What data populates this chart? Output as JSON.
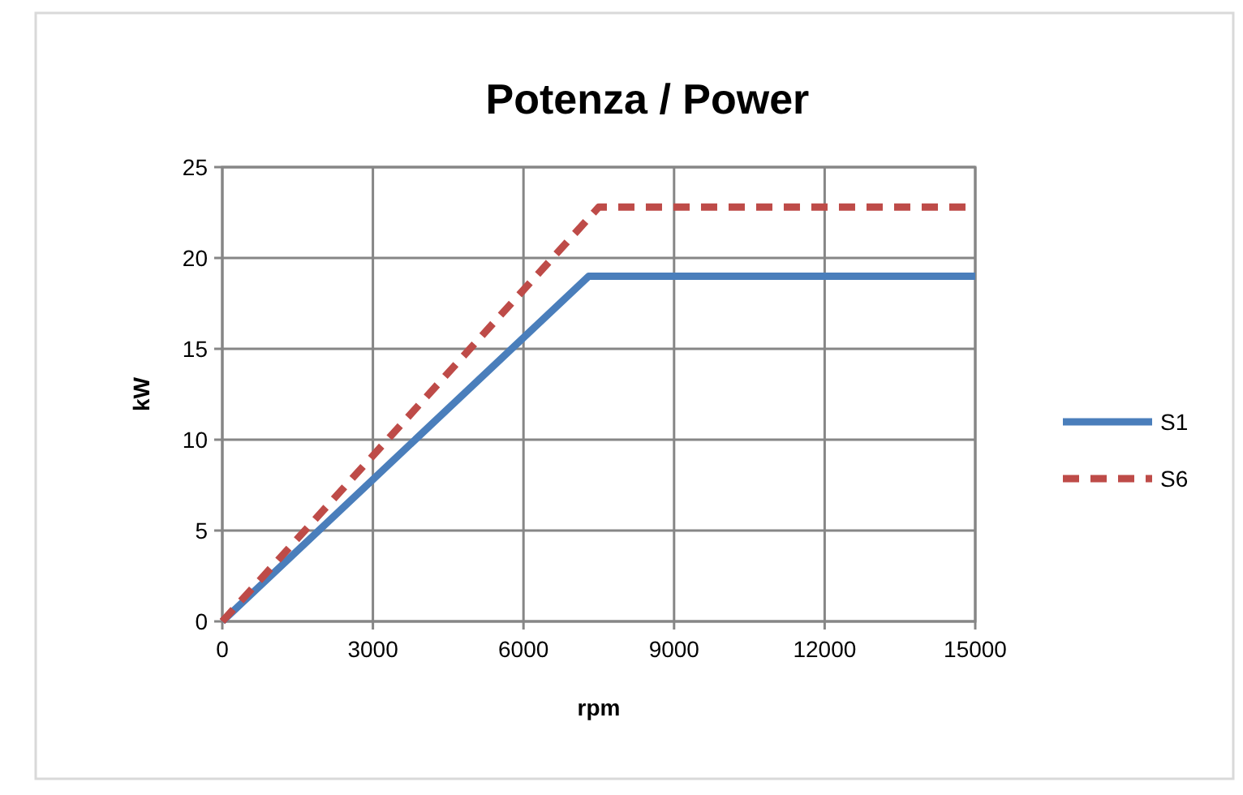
{
  "chart_data": {
    "type": "line",
    "title": "Potenza / Power",
    "xlabel": "rpm",
    "ylabel": "kW",
    "xlim": [
      0,
      15000
    ],
    "xticks": [
      0,
      3000,
      6000,
      9000,
      12000,
      15000
    ],
    "ylim": [
      0,
      25
    ],
    "yticks": [
      0,
      5,
      10,
      15,
      20,
      25
    ],
    "grid": true,
    "legend": "right",
    "marker": "none",
    "series": [
      {
        "name": "S1",
        "color": "#4a7ebb",
        "x": [
          0,
          7300,
          15000
        ],
        "values": [
          0,
          19,
          19
        ],
        "line_style": "solid"
      },
      {
        "name": "S6",
        "color": "#be4b48",
        "x": [
          0,
          7500,
          15000
        ],
        "values": [
          0,
          22.8,
          22.8
        ],
        "line_style": "dashed"
      }
    ]
  }
}
